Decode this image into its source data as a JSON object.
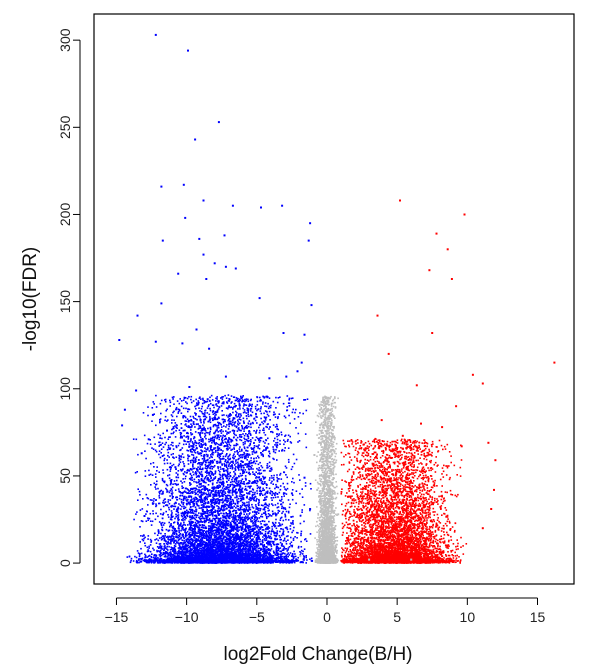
{
  "chart_data": {
    "type": "scatter",
    "title": "",
    "xlabel": "log2Fold Change(B/H)",
    "ylabel": "-log10(FDR)",
    "xlim": [
      -16.6,
      17.6
    ],
    "ylim": [
      -12,
      315
    ],
    "xticks": [
      "-15",
      "-10",
      "-5",
      "0",
      "5",
      "10",
      "15"
    ],
    "yticks": [
      "0",
      "50",
      "100",
      "150",
      "200",
      "250",
      "300"
    ],
    "grid": false,
    "legend": "none",
    "colors": {
      "down": "#0000ff",
      "up": "#ff0000",
      "ns": "#bebebe"
    },
    "series": [
      {
        "color": "#0000ff",
        "values": [
          [
            -12.2,
            303
          ],
          [
            -9.9,
            294
          ],
          [
            -7.7,
            253
          ],
          [
            -9.4,
            243
          ],
          [
            -11.8,
            216
          ],
          [
            -10.2,
            217
          ],
          [
            -8.8,
            208
          ],
          [
            -10.1,
            198
          ],
          [
            -6.7,
            205
          ],
          [
            -4.7,
            204
          ],
          [
            -3.2,
            205
          ],
          [
            -1.2,
            195
          ],
          [
            -11.7,
            185
          ],
          [
            -9.1,
            186
          ],
          [
            -7.3,
            188
          ],
          [
            -1.3,
            185
          ],
          [
            -8.8,
            177
          ],
          [
            -8.0,
            172
          ],
          [
            -7.2,
            170
          ],
          [
            -6.5,
            169
          ],
          [
            -10.6,
            166
          ],
          [
            -8.6,
            163
          ],
          [
            -11.8,
            149
          ],
          [
            -4.8,
            152
          ],
          [
            -1.1,
            148
          ],
          [
            -14.8,
            128
          ],
          [
            -13.5,
            142
          ],
          [
            -12.2,
            127
          ],
          [
            -10.3,
            126
          ],
          [
            -9.3,
            134
          ],
          [
            -3.1,
            132
          ],
          [
            -1.6,
            131
          ],
          [
            -8.4,
            123
          ],
          [
            -4.1,
            106
          ],
          [
            -2.9,
            107
          ],
          [
            -2.1,
            110
          ],
          [
            -1.8,
            115
          ],
          [
            -12.4,
            85
          ],
          [
            -14.4,
            88
          ],
          [
            -13.6,
            99
          ],
          [
            -14.6,
            79
          ],
          [
            -11.4,
            76
          ],
          [
            -9.8,
            101
          ],
          [
            -8.5,
            94
          ],
          [
            -7.2,
            107
          ],
          [
            -6.6,
            83
          ],
          [
            -13.2,
            63
          ],
          [
            -12.7,
            71
          ],
          [
            -13.0,
            27
          ],
          [
            -12.4,
            34
          ],
          [
            -11.7,
            40
          ],
          [
            -10.8,
            55
          ],
          [
            -5.3,
            46
          ],
          [
            -4.3,
            38
          ],
          [
            -3.6,
            28
          ],
          [
            -2.5,
            40
          ],
          [
            -1.6,
            49
          ],
          [
            -1.2,
            31
          ],
          [
            -8.0,
            72
          ],
          [
            -6.0,
            58
          ]
        ]
      },
      {
        "color": "#ff0000",
        "values": [
          [
            5.2,
            208
          ],
          [
            9.8,
            200
          ],
          [
            7.8,
            189
          ],
          [
            8.6,
            180
          ],
          [
            7.3,
            168
          ],
          [
            8.9,
            163
          ],
          [
            16.2,
            115
          ],
          [
            3.6,
            142
          ],
          [
            7.5,
            132
          ],
          [
            4.4,
            120
          ],
          [
            11.1,
            103
          ],
          [
            10.4,
            108
          ],
          [
            6.4,
            102
          ],
          [
            9.2,
            90
          ],
          [
            11.5,
            69
          ],
          [
            12.0,
            59
          ],
          [
            11.9,
            42
          ],
          [
            11.7,
            31
          ],
          [
            11.1,
            20
          ],
          [
            8.2,
            78
          ],
          [
            6.7,
            80
          ],
          [
            3.9,
            82
          ],
          [
            2.6,
            68
          ],
          [
            1.5,
            38
          ],
          [
            9.6,
            67
          ],
          [
            5.4,
            73
          ]
        ]
      },
      {
        "color": "#bebebe",
        "values": [
          [
            -0.7,
            42
          ],
          [
            -0.4,
            30
          ],
          [
            0.3,
            22
          ],
          [
            0.6,
            10
          ],
          [
            -0.9,
            62
          ],
          [
            0.1,
            50
          ],
          [
            -0.2,
            70
          ],
          [
            0.8,
            28
          ],
          [
            -0.5,
            88
          ],
          [
            -1.9,
            4
          ],
          [
            3.0,
            2
          ],
          [
            6.0,
            2
          ]
        ]
      }
    ],
    "clouds": [
      {
        "color": "#0000ff",
        "count": 9000,
        "xrange": [
          -14.5,
          -1
        ],
        "ymax": 95,
        "center": -7.5,
        "spread": 4.8
      },
      {
        "color": "#ff0000",
        "count": 6500,
        "xrange": [
          1,
          12
        ],
        "ymax": 70,
        "center": 4.8,
        "spread": 3.6
      },
      {
        "color": "#bebebe",
        "count": 3000,
        "xrange": [
          -1,
          1
        ],
        "ymax": 95,
        "center": 0,
        "spread": 0.6
      }
    ]
  }
}
